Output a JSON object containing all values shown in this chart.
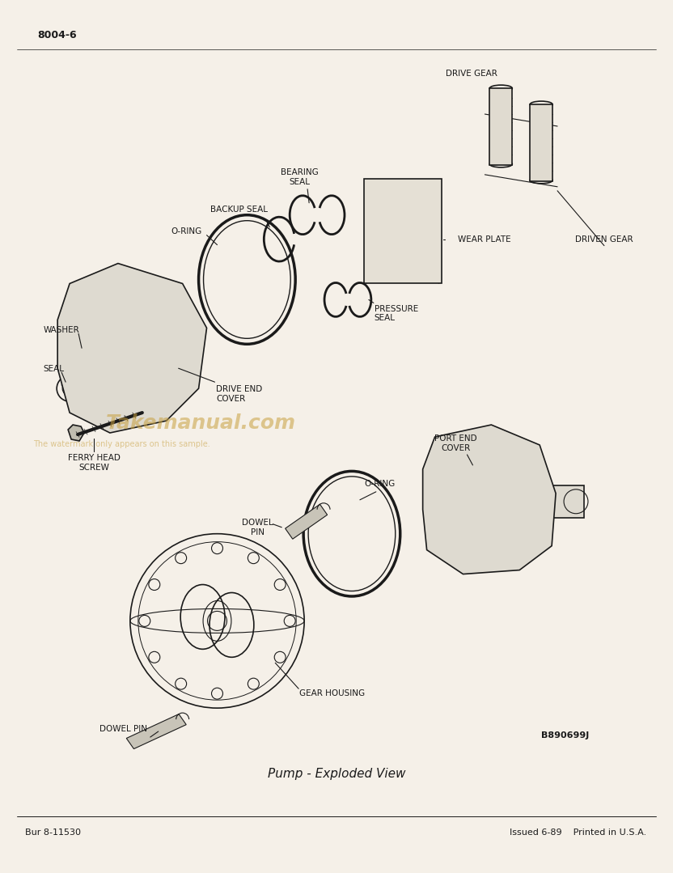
{
  "page_number": "8004-6",
  "figure_id": "B890699J",
  "caption": "Pump - Exploded View",
  "footer_left": "Bur 8-11530",
  "footer_right": "Issued 6-89    Printed in U.S.A.",
  "watermark": "Takemanual.com",
  "watermark_sub": "The watermark only appears on this sample.",
  "bg_color": "#f5f0e8",
  "line_color": "#1a1a1a",
  "label_fontsize": 7.5,
  "labels": [
    "DRIVE GEAR",
    "DRIVEN GEAR",
    "WEAR PLATE",
    "BEARING SEAL",
    "BACKUP SEAL",
    "O-RING",
    "PRESSURE SEAL",
    "DRIVE END COVER",
    "WASHER",
    "SEAL",
    "FERRY HEAD SCREW",
    "PORT END COVER",
    "O-RING",
    "DOWEL PIN",
    "GEAR HOUSING",
    "DOWEL PIN"
  ]
}
